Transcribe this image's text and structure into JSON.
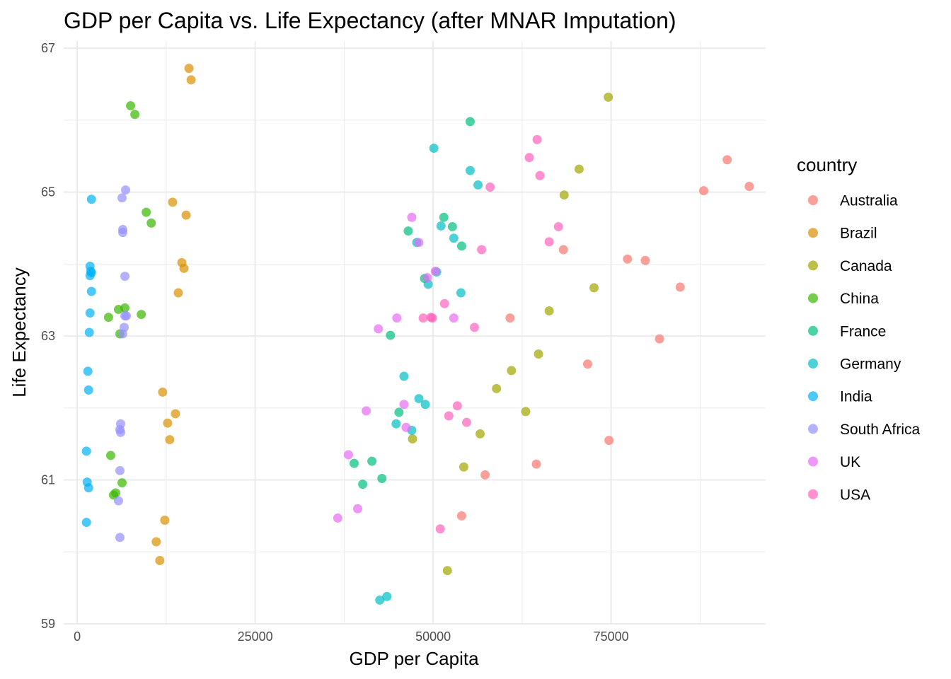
{
  "chart_data": {
    "type": "scatter",
    "title": "GDP per Capita vs. Life Expectancy (after MNAR Imputation)",
    "xlabel": "GDP per Capita",
    "ylabel": "Life Expectancy",
    "xlim": [
      -1900,
      96700
    ],
    "ylim": [
      59,
      67.1
    ],
    "xticks": [
      0,
      25000,
      50000,
      75000
    ],
    "yticks": [
      59,
      61,
      63,
      65,
      67
    ],
    "grid": true,
    "legend": {
      "title": "country",
      "position": "right"
    },
    "series": [
      {
        "name": "Australia",
        "color": "#F8766D",
        "points": [
          [
            91300,
            65.45
          ],
          [
            94400,
            65.08
          ],
          [
            88000,
            65.02
          ],
          [
            77300,
            64.07
          ],
          [
            79800,
            64.05
          ],
          [
            68300,
            64.2
          ],
          [
            84700,
            63.68
          ],
          [
            60800,
            63.25
          ],
          [
            81800,
            62.96
          ],
          [
            71700,
            62.61
          ],
          [
            74700,
            61.55
          ],
          [
            64500,
            61.22
          ],
          [
            57300,
            61.07
          ],
          [
            54000,
            60.5
          ]
        ]
      },
      {
        "name": "Brazil",
        "color": "#D89000",
        "points": [
          [
            15700,
            66.72
          ],
          [
            16000,
            66.56
          ],
          [
            13400,
            64.86
          ],
          [
            15300,
            64.68
          ],
          [
            14700,
            64.02
          ],
          [
            15000,
            63.94
          ],
          [
            14200,
            63.6
          ],
          [
            12000,
            62.22
          ],
          [
            13800,
            61.92
          ],
          [
            12700,
            61.79
          ],
          [
            13000,
            61.56
          ],
          [
            12300,
            60.44
          ],
          [
            11100,
            60.14
          ],
          [
            11600,
            59.88
          ]
        ]
      },
      {
        "name": "Canada",
        "color": "#A3A500",
        "points": [
          [
            74600,
            66.32
          ],
          [
            70500,
            65.32
          ],
          [
            68400,
            64.96
          ],
          [
            72600,
            63.67
          ],
          [
            66300,
            63.35
          ],
          [
            64800,
            62.75
          ],
          [
            61000,
            62.52
          ],
          [
            58900,
            62.27
          ],
          [
            63000,
            61.95
          ],
          [
            47100,
            61.57
          ],
          [
            56600,
            61.64
          ],
          [
            54300,
            61.18
          ],
          [
            52000,
            59.74
          ]
        ]
      },
      {
        "name": "China",
        "color": "#39B600",
        "points": [
          [
            7500,
            66.2
          ],
          [
            8100,
            66.08
          ],
          [
            9700,
            64.72
          ],
          [
            10400,
            64.57
          ],
          [
            5800,
            63.37
          ],
          [
            6700,
            63.39
          ],
          [
            4400,
            63.26
          ],
          [
            9000,
            63.3
          ],
          [
            6000,
            63.03
          ],
          [
            4700,
            61.34
          ],
          [
            6300,
            60.96
          ],
          [
            5400,
            60.82
          ],
          [
            5100,
            60.79
          ]
        ]
      },
      {
        "name": "France",
        "color": "#00BF7D",
        "points": [
          [
            55200,
            65.98
          ],
          [
            51500,
            64.65
          ],
          [
            52700,
            64.52
          ],
          [
            46500,
            64.46
          ],
          [
            54000,
            64.25
          ],
          [
            48800,
            63.8
          ],
          [
            44000,
            63.01
          ],
          [
            45200,
            61.94
          ],
          [
            41400,
            61.26
          ],
          [
            38900,
            61.23
          ],
          [
            42800,
            61.02
          ],
          [
            40100,
            60.94
          ]
        ]
      },
      {
        "name": "Germany",
        "color": "#00BFC4",
        "points": [
          [
            50100,
            65.61
          ],
          [
            55200,
            65.3
          ],
          [
            56300,
            65.1
          ],
          [
            51100,
            64.53
          ],
          [
            52900,
            64.36
          ],
          [
            47700,
            64.3
          ],
          [
            50500,
            63.89
          ],
          [
            49300,
            63.72
          ],
          [
            53900,
            63.6
          ],
          [
            45900,
            62.44
          ],
          [
            48000,
            62.13
          ],
          [
            48900,
            62.05
          ],
          [
            44800,
            61.78
          ],
          [
            47000,
            61.69
          ],
          [
            43500,
            59.38
          ],
          [
            42500,
            59.33
          ]
        ]
      },
      {
        "name": "India",
        "color": "#00B0F6",
        "points": [
          [
            2000,
            64.9
          ],
          [
            1800,
            63.97
          ],
          [
            1900,
            63.9
          ],
          [
            2000,
            63.88
          ],
          [
            1800,
            63.84
          ],
          [
            2000,
            63.62
          ],
          [
            1800,
            63.32
          ],
          [
            1700,
            63.05
          ],
          [
            1500,
            62.51
          ],
          [
            1600,
            62.25
          ],
          [
            1300,
            61.4
          ],
          [
            1400,
            60.97
          ],
          [
            1600,
            60.89
          ],
          [
            1300,
            60.41
          ]
        ]
      },
      {
        "name": "South Africa",
        "color": "#9590FF",
        "points": [
          [
            6800,
            65.03
          ],
          [
            6300,
            64.92
          ],
          [
            6400,
            64.48
          ],
          [
            6400,
            64.44
          ],
          [
            6700,
            63.83
          ],
          [
            6900,
            63.28
          ],
          [
            6700,
            63.28
          ],
          [
            6600,
            63.12
          ],
          [
            6400,
            63.03
          ],
          [
            6100,
            61.78
          ],
          [
            6000,
            61.7
          ],
          [
            6100,
            61.66
          ],
          [
            6000,
            61.13
          ],
          [
            5800,
            60.71
          ],
          [
            6000,
            60.2
          ]
        ]
      },
      {
        "name": "UK",
        "color": "#E76BF3",
        "points": [
          [
            47000,
            64.65
          ],
          [
            48000,
            64.3
          ],
          [
            50300,
            63.9
          ],
          [
            49200,
            63.81
          ],
          [
            44900,
            63.25
          ],
          [
            52900,
            63.25
          ],
          [
            42300,
            63.1
          ],
          [
            45900,
            62.05
          ],
          [
            40600,
            61.96
          ],
          [
            46200,
            61.73
          ],
          [
            38100,
            61.35
          ],
          [
            39400,
            60.6
          ],
          [
            36600,
            60.47
          ]
        ]
      },
      {
        "name": "USA",
        "color": "#FF62BC",
        "points": [
          [
            64600,
            65.73
          ],
          [
            63500,
            65.48
          ],
          [
            65000,
            65.23
          ],
          [
            58000,
            65.07
          ],
          [
            67600,
            64.52
          ],
          [
            66300,
            64.31
          ],
          [
            56800,
            64.2
          ],
          [
            51600,
            63.45
          ],
          [
            48600,
            63.25
          ],
          [
            49700,
            63.26
          ],
          [
            49900,
            63.25
          ],
          [
            55800,
            63.12
          ],
          [
            53400,
            62.03
          ],
          [
            52200,
            61.89
          ],
          [
            54700,
            61.8
          ],
          [
            51000,
            60.32
          ]
        ]
      }
    ]
  }
}
